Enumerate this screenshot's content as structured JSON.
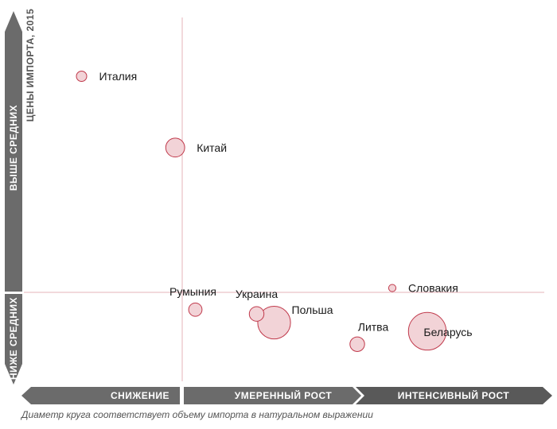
{
  "chart_data": {
    "type": "scatter",
    "title": "",
    "y_axis_title": "ЦЕНЫ ИМПОРТА, 2015",
    "y_bands": [
      "ВЫШЕ СРЕДНИХ",
      "НИЖЕ СРЕДНИХ"
    ],
    "x_bands": [
      "СНИЖЕНИЕ",
      "УМЕРЕННЫЙ РОСТ",
      "ИНТЕНСИВНЫЙ РОСТ"
    ],
    "footnote": "Диаметр круга соответствует объему импорта в натуральном выражении",
    "points": [
      {
        "name": "Италия",
        "x": -11.5,
        "y": 1.0,
        "size": 3
      },
      {
        "name": "Китай",
        "x": -0.8,
        "y": 0.67,
        "size": 10
      },
      {
        "name": "Румыния",
        "x": 1.5,
        "y": -0.08,
        "size": 5
      },
      {
        "name": "Украина",
        "x": 8.5,
        "y": -0.1,
        "size": 6
      },
      {
        "name": "Польша",
        "x": 10.5,
        "y": -0.14,
        "size": 30
      },
      {
        "name": "Словакия",
        "x": 24.0,
        "y": 0.02,
        "size": 1.5
      },
      {
        "name": "Литва",
        "x": 20.0,
        "y": -0.24,
        "size": 6
      },
      {
        "name": "Беларусь",
        "x": 28.0,
        "y": -0.18,
        "size": 40
      }
    ],
    "colors": {
      "bubble_fill": "#f2d3d7",
      "bubble_stroke": "#c0394b",
      "reference_line": "#e6b3ba",
      "band": "#6b6b6b",
      "band_dark": "#595959"
    }
  }
}
